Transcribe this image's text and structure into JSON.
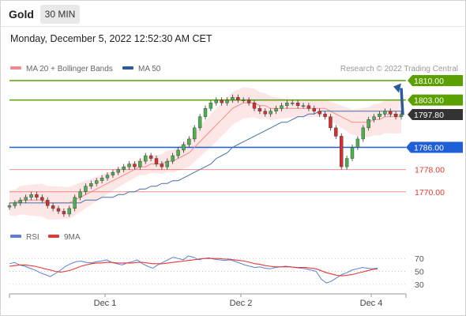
{
  "header": {
    "title": "Gold",
    "timeframe": "30 MIN",
    "datetime": "Monday, December 5, 2022 12:52:30 AM CET"
  },
  "chart_data": [
    {
      "type": "line",
      "name": "price",
      "legend": [
        {
          "label": "MA 20 + Bollinger Bands",
          "color": "#f28b8b"
        },
        {
          "label": "MA 50",
          "color": "#2d5b9a"
        }
      ],
      "credit": "Research © 2022 Trading Central",
      "x_ticks": [
        "Dec 1",
        "Dec 2",
        "Dec 4"
      ],
      "ylim": [
        1758,
        1812
      ],
      "levels": [
        {
          "value": 1810.0,
          "label": "1810.00",
          "kind": "resistance",
          "color": "#5aa000"
        },
        {
          "value": 1803.0,
          "label": "1803.00",
          "kind": "resistance",
          "color": "#5aa000"
        },
        {
          "value": 1797.8,
          "label": "1797.80",
          "kind": "last",
          "color": "#333333"
        },
        {
          "value": 1786.0,
          "label": "1786.00",
          "kind": "pivot",
          "color": "#1f5fd6"
        },
        {
          "value": 1778.0,
          "label": "1778.00",
          "kind": "support",
          "color": "#e53935"
        },
        {
          "value": 1770.0,
          "label": "1770.00",
          "kind": "support",
          "color": "#e53935"
        }
      ],
      "series": [
        {
          "name": "price",
          "values": [
            1765,
            1766,
            1767,
            1768,
            1769,
            1768,
            1767,
            1765,
            1764,
            1763,
            1762,
            1764,
            1768,
            1770,
            1772,
            1773,
            1774,
            1775,
            1776,
            1777,
            1778,
            1779,
            1780,
            1779,
            1781,
            1783,
            1782,
            1780,
            1779,
            1781,
            1783,
            1785,
            1787,
            1789,
            1793,
            1797,
            1800,
            1802,
            1803,
            1802,
            1803,
            1804,
            1803,
            1803,
            1802,
            1800,
            1799,
            1798,
            1799,
            1800,
            1801,
            1802,
            1802,
            1801,
            1801,
            1800,
            1799,
            1798,
            1797,
            1793,
            1790,
            1779,
            1782,
            1786,
            1789,
            1793,
            1796,
            1797,
            1798,
            1799,
            1798,
            1797,
            1797.8
          ]
        },
        {
          "name": "MA 20",
          "values": [
            1766,
            1766,
            1767,
            1767,
            1767,
            1767,
            1767,
            1766,
            1766,
            1766,
            1766,
            1766,
            1767,
            1768,
            1769,
            1770,
            1771,
            1772,
            1773,
            1774,
            1775,
            1776,
            1777,
            1778,
            1779,
            1779,
            1780,
            1780,
            1780,
            1781,
            1781,
            1782,
            1783,
            1784,
            1786,
            1788,
            1790,
            1792,
            1794,
            1796,
            1798,
            1800,
            1801,
            1802,
            1802,
            1802,
            1801,
            1801,
            1800,
            1800,
            1800,
            1800,
            1800,
            1800,
            1800,
            1800,
            1800,
            1800,
            1800,
            1799,
            1798,
            1797,
            1796,
            1795,
            1795,
            1795,
            1795,
            1796,
            1796,
            1797,
            1797,
            1797,
            1797
          ]
        },
        {
          "name": "MA 50",
          "values": [
            1766,
            1766,
            1766,
            1766,
            1766,
            1766,
            1766,
            1766,
            1766,
            1766,
            1766,
            1766,
            1766,
            1766,
            1767,
            1767,
            1767,
            1768,
            1768,
            1768,
            1769,
            1769,
            1770,
            1770,
            1771,
            1771,
            1772,
            1772,
            1773,
            1773,
            1774,
            1774,
            1775,
            1776,
            1777,
            1778,
            1779,
            1780,
            1782,
            1783,
            1784,
            1786,
            1787,
            1788,
            1789,
            1790,
            1791,
            1792,
            1793,
            1794,
            1795,
            1795,
            1796,
            1797,
            1797,
            1798,
            1798,
            1799,
            1799,
            1799,
            1799,
            1799,
            1799,
            1799,
            1799,
            1799,
            1799,
            1799,
            1799,
            1799,
            1799,
            1799,
            1799
          ]
        }
      ]
    },
    {
      "type": "line",
      "name": "rsi",
      "legend": [
        {
          "label": "RSI",
          "color": "#5b7fd6"
        },
        {
          "label": "9MA",
          "color": "#e53935"
        }
      ],
      "y_ticks": [
        "70",
        "50",
        "30"
      ],
      "ylim": [
        20,
        85
      ],
      "series": [
        {
          "name": "RSI",
          "values": [
            62,
            64,
            60,
            58,
            55,
            52,
            48,
            45,
            42,
            47,
            52,
            58,
            62,
            65,
            66,
            64,
            63,
            65,
            66,
            68,
            64,
            62,
            60,
            63,
            65,
            68,
            62,
            58,
            55,
            60,
            64,
            68,
            72,
            70,
            68,
            74,
            72,
            68,
            70,
            71,
            69,
            68,
            67,
            68,
            66,
            63,
            60,
            58,
            56,
            57,
            55,
            54,
            56,
            57,
            58,
            57,
            56,
            55,
            54,
            52,
            50,
            38,
            32,
            35,
            40,
            45,
            48,
            52,
            54,
            56,
            55,
            54,
            55
          ]
        },
        {
          "name": "9MA",
          "values": [
            58,
            59,
            60,
            60,
            59,
            58,
            56,
            54,
            52,
            50,
            49,
            50,
            52,
            55,
            58,
            60,
            62,
            63,
            63,
            64,
            64,
            63,
            63,
            63,
            63,
            64,
            64,
            63,
            62,
            62,
            62,
            63,
            64,
            65,
            66,
            67,
            68,
            69,
            70,
            70,
            70,
            70,
            69,
            69,
            68,
            67,
            66,
            64,
            62,
            61,
            59,
            58,
            57,
            57,
            57,
            57,
            56,
            56,
            56,
            55,
            54,
            51,
            48,
            46,
            44,
            43,
            44,
            45,
            47,
            49,
            51,
            53,
            54
          ]
        }
      ]
    }
  ]
}
